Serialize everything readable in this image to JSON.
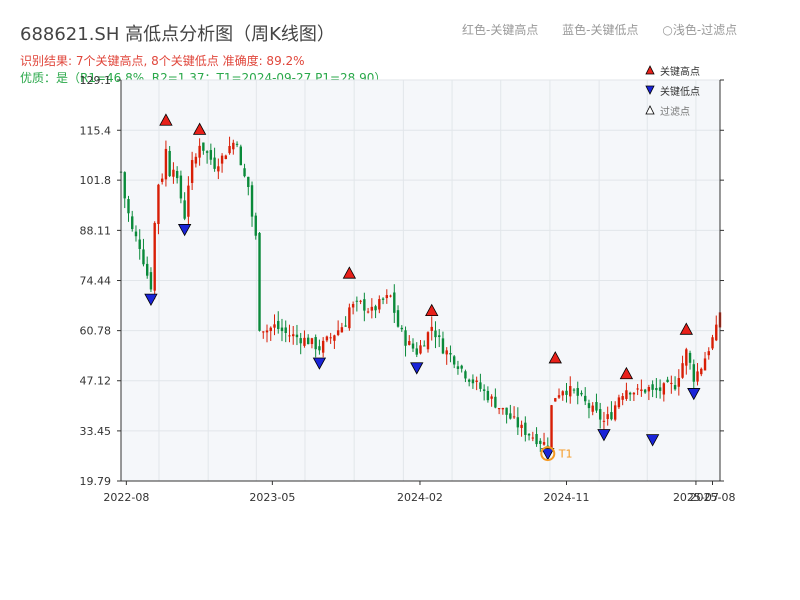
{
  "header": {
    "title": "688621.SH 高低点分析图（周K线图）",
    "result_line": "识别结果: 7个关键高点, 8个关键低点  准确度: 89.2%",
    "quality_line": "优质：是（R1=46.8%, R2=1.37；T1=2024-09-27 P1=28.90）"
  },
  "top_legend": {
    "item1": "红色-关键高点",
    "item2": "蓝色-关键低点",
    "item3": "○浅色-过滤点"
  },
  "colors": {
    "up": "#d81e06",
    "down": "#0a8a3a",
    "key_high": "#e8201a",
    "key_low": "#1a24d8",
    "filtered": "#ffffff",
    "t1_marker": "#f59a23",
    "plot_bg": "#f5f7fa",
    "grid": "#e2e6ea",
    "axis": "#333333"
  },
  "chart_data": {
    "type": "candlestick",
    "ylim": [
      19.79,
      129.1
    ],
    "y_ticks": [
      "129.1",
      "115.4",
      "101.8",
      "88.11",
      "74.44",
      "60.78",
      "47.12",
      "33.45",
      "19.79"
    ],
    "x_ticks": [
      "2022-08",
      "2023-05",
      "2024-02",
      "2024-11",
      "2025-07",
      "2025-08"
    ],
    "x_tick_dates": [
      "2022-08-01",
      "2023-05-01",
      "2024-02-01",
      "2024-11-01",
      "2025-07-01",
      "2025-08-01"
    ],
    "date_range": [
      "2022-07-22",
      "2025-08-15"
    ],
    "legend": [
      "关键高点",
      "关键低点",
      "过滤点"
    ],
    "key_highs": [
      {
        "date": "2022-10-14",
        "price": 116.5
      },
      {
        "date": "2022-12-16",
        "price": 114.0
      },
      {
        "date": "2023-09-22",
        "price": 74.8
      },
      {
        "date": "2024-02-23",
        "price": 64.6
      },
      {
        "date": "2024-10-11",
        "price": 51.7
      },
      {
        "date": "2025-02-21",
        "price": 47.4
      },
      {
        "date": "2025-06-13",
        "price": 59.5
      }
    ],
    "key_lows": [
      {
        "date": "2022-09-16",
        "price": 71.0
      },
      {
        "date": "2022-11-18",
        "price": 90.0
      },
      {
        "date": "2023-07-28",
        "price": 53.6
      },
      {
        "date": "2024-01-26",
        "price": 52.3
      },
      {
        "date": "2024-09-27",
        "price": 28.9
      },
      {
        "date": "2025-01-10",
        "price": 34.1
      },
      {
        "date": "2025-04-11",
        "price": 32.7
      },
      {
        "date": "2025-06-27",
        "price": 45.3
      }
    ],
    "t1": {
      "date": "2024-09-27",
      "price": 28.9,
      "label": "T1"
    },
    "price_path": [
      [
        "2022-07-22",
        104
      ],
      [
        "2022-07-29",
        97
      ],
      [
        "2022-08-12",
        88
      ],
      [
        "2022-08-26",
        84
      ],
      [
        "2022-09-02",
        80
      ],
      [
        "2022-09-09",
        76
      ],
      [
        "2022-09-16",
        73
      ],
      [
        "2022-09-23",
        90
      ],
      [
        "2022-09-30",
        101
      ],
      [
        "2022-10-07",
        103
      ],
      [
        "2022-10-14",
        110
      ],
      [
        "2022-10-21",
        104
      ],
      [
        "2022-10-28",
        106
      ],
      [
        "2022-11-04",
        101
      ],
      [
        "2022-11-11",
        97
      ],
      [
        "2022-11-18",
        92
      ],
      [
        "2022-11-25",
        101
      ],
      [
        "2022-12-02",
        106
      ],
      [
        "2022-12-09",
        108
      ],
      [
        "2022-12-16",
        112
      ],
      [
        "2022-12-30",
        109
      ],
      [
        "2023-01-13",
        106
      ],
      [
        "2023-01-27",
        108
      ],
      [
        "2023-02-10",
        111
      ],
      [
        "2023-02-24",
        113
      ],
      [
        "2023-03-03",
        105
      ],
      [
        "2023-03-17",
        100
      ],
      [
        "2023-03-24",
        92
      ],
      [
        "2023-03-31",
        86
      ],
      [
        "2023-04-07",
        62
      ],
      [
        "2023-04-21",
        61
      ],
      [
        "2023-05-05",
        62
      ],
      [
        "2023-05-26",
        60
      ],
      [
        "2023-06-16",
        59
      ],
      [
        "2023-07-07",
        58
      ],
      [
        "2023-07-28",
        56
      ],
      [
        "2023-08-18",
        59
      ],
      [
        "2023-09-01",
        61
      ],
      [
        "2023-09-15",
        63
      ],
      [
        "2023-09-22",
        67
      ],
      [
        "2023-10-13",
        68
      ],
      [
        "2023-11-03",
        66
      ],
      [
        "2023-11-24",
        69
      ],
      [
        "2023-12-08",
        70
      ],
      [
        "2023-12-22",
        62
      ],
      [
        "2024-01-05",
        58
      ],
      [
        "2024-01-26",
        55
      ],
      [
        "2024-02-09",
        58
      ],
      [
        "2024-02-23",
        62
      ],
      [
        "2024-03-15",
        56
      ],
      [
        "2024-04-05",
        53
      ],
      [
        "2024-04-26",
        49
      ],
      [
        "2024-05-17",
        46
      ],
      [
        "2024-06-07",
        43
      ],
      [
        "2024-06-28",
        40
      ],
      [
        "2024-07-19",
        37
      ],
      [
        "2024-08-09",
        34
      ],
      [
        "2024-08-30",
        32
      ],
      [
        "2024-09-20",
        30
      ],
      [
        "2024-09-27",
        30
      ],
      [
        "2024-10-04",
        40
      ],
      [
        "2024-10-11",
        43
      ],
      [
        "2024-10-25",
        45
      ],
      [
        "2024-11-15",
        44
      ],
      [
        "2024-12-06",
        41
      ],
      [
        "2024-12-27",
        38
      ],
      [
        "2025-01-10",
        36
      ],
      [
        "2025-01-24",
        38
      ],
      [
        "2025-02-07",
        43
      ],
      [
        "2025-02-21",
        45
      ],
      [
        "2025-03-14",
        44
      ],
      [
        "2025-04-04",
        45
      ],
      [
        "2025-04-11",
        44
      ],
      [
        "2025-05-02",
        45
      ],
      [
        "2025-05-23",
        46
      ],
      [
        "2025-06-13",
        55
      ],
      [
        "2025-06-27",
        48
      ],
      [
        "2025-07-11",
        51
      ],
      [
        "2025-07-25",
        56
      ],
      [
        "2025-08-08",
        61
      ],
      [
        "2025-08-15",
        66
      ]
    ]
  }
}
